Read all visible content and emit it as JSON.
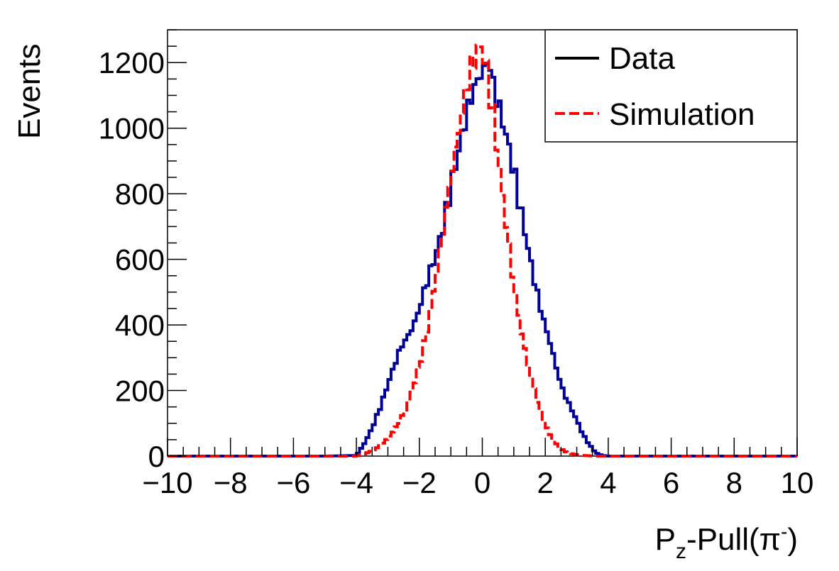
{
  "chart_data": {
    "type": "line",
    "xlabel": {
      "main": "P",
      "sub": "z",
      "rest": "-Pull(π",
      "sup": "-",
      "close": ")"
    },
    "ylabel": "Events",
    "xlim": [
      -10,
      10
    ],
    "ylim": [
      0,
      1300
    ],
    "x_ticks": [
      -10,
      -8,
      -6,
      -4,
      -2,
      0,
      2,
      4,
      6,
      8,
      10
    ],
    "x_tick_labels": [
      "−10",
      "−8",
      "−6",
      "−4",
      "−2",
      "0",
      "2",
      "4",
      "6",
      "8",
      "10"
    ],
    "y_ticks": [
      0,
      200,
      400,
      600,
      800,
      1000,
      1200
    ],
    "y_tick_labels": [
      "0",
      "200",
      "400",
      "600",
      "800",
      "1000",
      "1200"
    ],
    "legend_position": "top-right",
    "bin_width": 0.1,
    "series": [
      {
        "name": "Data",
        "legend_color": "#000000",
        "line_color": "#000099",
        "style": "solid",
        "x": [
          -10.0,
          -9.0,
          -8.0,
          -7.0,
          -6.0,
          -5.0,
          -4.0,
          -3.8,
          -3.6,
          -3.4,
          -3.2,
          -3.0,
          -2.8,
          -2.6,
          -2.4,
          -2.2,
          -2.0,
          -1.8,
          -1.6,
          -1.4,
          -1.2,
          -1.0,
          -0.8,
          -0.6,
          -0.4,
          -0.2,
          0.0,
          0.2,
          0.4,
          0.6,
          0.8,
          1.0,
          1.2,
          1.4,
          1.6,
          1.8,
          2.0,
          2.2,
          2.4,
          2.6,
          2.8,
          3.0,
          3.2,
          3.4,
          3.6,
          3.8,
          4.0,
          5.0,
          6.0,
          7.0,
          8.0,
          9.0,
          10.0
        ],
        "y": [
          0,
          0,
          0,
          0,
          0,
          0,
          2,
          30,
          65,
          110,
          160,
          220,
          275,
          330,
          360,
          395,
          450,
          520,
          580,
          640,
          720,
          820,
          910,
          1000,
          1080,
          1140,
          1170,
          1210,
          1110,
          1040,
          960,
          870,
          760,
          660,
          560,
          470,
          395,
          330,
          250,
          190,
          150,
          110,
          65,
          35,
          10,
          2,
          0,
          0,
          0,
          0,
          0,
          0,
          0
        ]
      },
      {
        "name": "Simulation",
        "legend_color": "#ff0000",
        "line_color": "#ff0000",
        "style": "dashed",
        "x": [
          -10.0,
          -9.0,
          -8.0,
          -7.0,
          -6.0,
          -5.0,
          -4.0,
          -3.8,
          -3.6,
          -3.4,
          -3.2,
          -3.0,
          -2.8,
          -2.6,
          -2.4,
          -2.2,
          -2.0,
          -1.8,
          -1.6,
          -1.4,
          -1.2,
          -1.0,
          -0.8,
          -0.6,
          -0.4,
          -0.2,
          0.0,
          0.2,
          0.4,
          0.6,
          0.8,
          1.0,
          1.2,
          1.4,
          1.6,
          1.8,
          2.0,
          2.2,
          2.4,
          2.6,
          2.8,
          3.0,
          3.2,
          3.4,
          3.6,
          3.8,
          4.0,
          5.0,
          6.0,
          7.0,
          8.0,
          9.0,
          10.0
        ],
        "y": [
          0,
          0,
          0,
          0,
          0,
          0,
          0,
          5,
          12,
          22,
          35,
          55,
          80,
          110,
          150,
          210,
          280,
          360,
          470,
          590,
          720,
          850,
          960,
          1080,
          1170,
          1230,
          1250,
          1140,
          1000,
          830,
          670,
          520,
          400,
          300,
          220,
          150,
          95,
          55,
          30,
          15,
          8,
          4,
          2,
          1,
          0,
          0,
          0,
          0,
          0,
          0,
          0,
          0,
          0
        ]
      }
    ]
  }
}
